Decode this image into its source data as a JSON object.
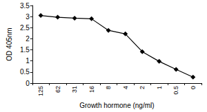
{
  "chart_data": {
    "type": "line",
    "x_label": "Growth hormone (ng/ml)",
    "y_label": "OD 405nm",
    "categories": [
      "125",
      "62",
      "31",
      "16",
      "8",
      "4",
      "2",
      "1",
      "0.5",
      "0"
    ],
    "values": [
      3.05,
      2.97,
      2.93,
      2.9,
      2.38,
      2.22,
      1.42,
      0.98,
      0.62,
      0.27
    ],
    "color": "#000000",
    "marker": "diamond",
    "line_style": "solid",
    "ylim": [
      0,
      3.5
    ],
    "yticks": [
      0,
      0.5,
      1,
      1.5,
      2,
      2.5,
      3,
      3.5
    ],
    "grid": false
  }
}
